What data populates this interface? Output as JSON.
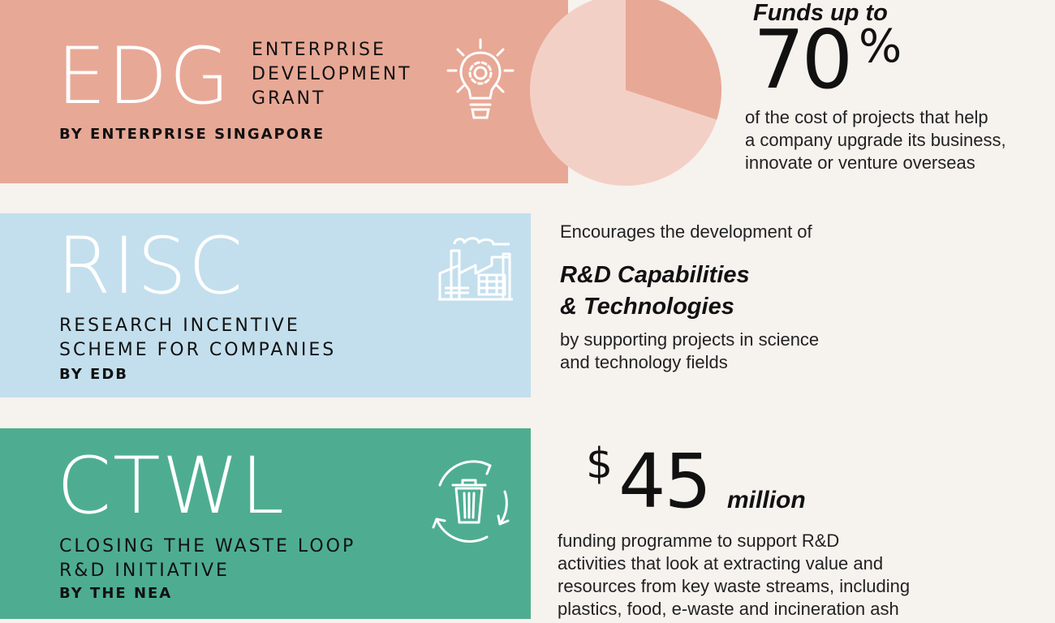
{
  "edg": {
    "acronym": "EDG",
    "full_name": [
      "ENTERPRISE",
      "DEVELOPMENT",
      "GRANT"
    ],
    "by": "BY ENTERPRISE SINGAPORE",
    "funds_label": "Funds up to",
    "funds_value": "70",
    "funds_unit": "%",
    "funds_fraction": 0.7,
    "description": [
      "of the cost of projects that help",
      "a company upgrade its business,",
      "innovate or venture overseas"
    ],
    "icon": "lightbulb-gear-icon",
    "color": "#e8a896"
  },
  "risc": {
    "acronym": "RISC",
    "full_name": [
      "RESEARCH INCENTIVE",
      "SCHEME FOR COMPANIES"
    ],
    "by": "BY EDB",
    "intro": "Encourages the development of",
    "headline": [
      "R&D Capabilities",
      "& Technologies"
    ],
    "description": [
      "by supporting projects in science",
      "and technology fields"
    ],
    "icon": "factory-icon",
    "color": "#c3dfed"
  },
  "ctwl": {
    "acronym": "CTWL",
    "full_name": [
      "CLOSING THE WASTE LOOP",
      "R&D INITIATIVE"
    ],
    "by": "BY THE NEA",
    "currency": "$",
    "amount": "45",
    "amount_unit": "million",
    "description": [
      "funding programme to support R&D",
      "activities that look at extracting value and",
      "resources from key waste streams, including",
      "plastics, food, e-waste and incineration ash"
    ],
    "icon": "recycle-bin-icon",
    "color": "#4ead90"
  }
}
